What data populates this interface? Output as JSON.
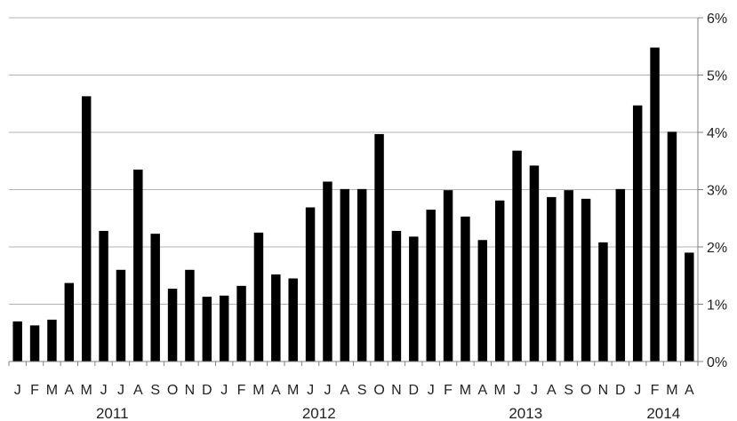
{
  "chart_data": {
    "type": "bar",
    "categories": [
      "J",
      "F",
      "M",
      "A",
      "M",
      "J",
      "J",
      "A",
      "S",
      "O",
      "N",
      "D",
      "J",
      "F",
      "M",
      "A",
      "M",
      "J",
      "J",
      "A",
      "S",
      "O",
      "N",
      "D",
      "J",
      "F",
      "M",
      "A",
      "M",
      "J",
      "J",
      "A",
      "S",
      "O",
      "N",
      "D",
      "J",
      "F",
      "M",
      "A"
    ],
    "years": [
      "2011",
      "2012",
      "2013",
      "2014"
    ],
    "values": [
      0.7,
      0.63,
      0.73,
      1.37,
      4.63,
      2.28,
      1.6,
      3.35,
      2.23,
      1.27,
      1.6,
      1.13,
      1.15,
      1.32,
      2.25,
      1.52,
      1.45,
      2.69,
      3.14,
      3.01,
      3.01,
      3.97,
      2.28,
      2.18,
      2.65,
      2.99,
      2.53,
      2.12,
      2.81,
      3.68,
      3.42,
      2.87,
      2.99,
      2.84,
      2.08,
      3.01,
      4.47,
      5.48,
      4.01,
      1.9
    ],
    "ylim": [
      0,
      6
    ],
    "yticks": [
      "0%",
      "1%",
      "2%",
      "3%",
      "4%",
      "5%",
      "6%"
    ],
    "grid": true,
    "bar_color": "#000000",
    "grid_color": "#b3b3b3"
  }
}
